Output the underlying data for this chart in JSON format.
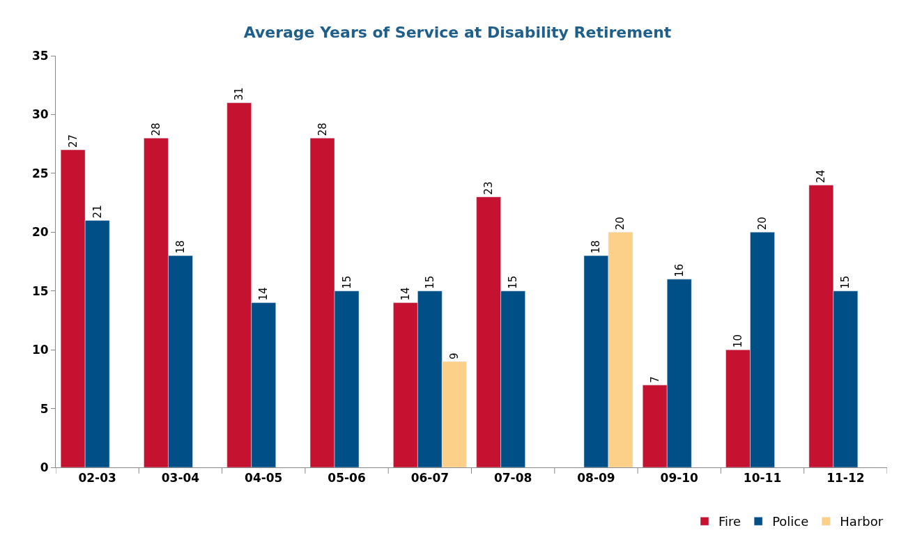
{
  "chart_data": {
    "type": "bar",
    "title": "Average Years of Service at Disability Retirement",
    "categories": [
      "02-03",
      "03-04",
      "04-05",
      "05-06",
      "06-07",
      "07-08",
      "08-09",
      "09-10",
      "10-11",
      "11-12"
    ],
    "series": [
      {
        "name": "Fire",
        "color": "#c41230",
        "values": [
          27,
          28,
          31,
          28,
          14,
          23,
          null,
          7,
          10,
          24
        ]
      },
      {
        "name": "Police",
        "color": "#004f86",
        "values": [
          21,
          18,
          14,
          15,
          15,
          15,
          18,
          16,
          20,
          15
        ]
      },
      {
        "name": "Harbor",
        "color": "#fdd08a",
        "values": [
          null,
          null,
          null,
          null,
          9,
          null,
          20,
          null,
          null,
          null
        ]
      }
    ],
    "ylim": [
      0,
      35
    ],
    "yticks": [
      0,
      5,
      10,
      15,
      20,
      25,
      30,
      35
    ],
    "grid": false,
    "legend": "bottom right",
    "data_labels": true
  }
}
